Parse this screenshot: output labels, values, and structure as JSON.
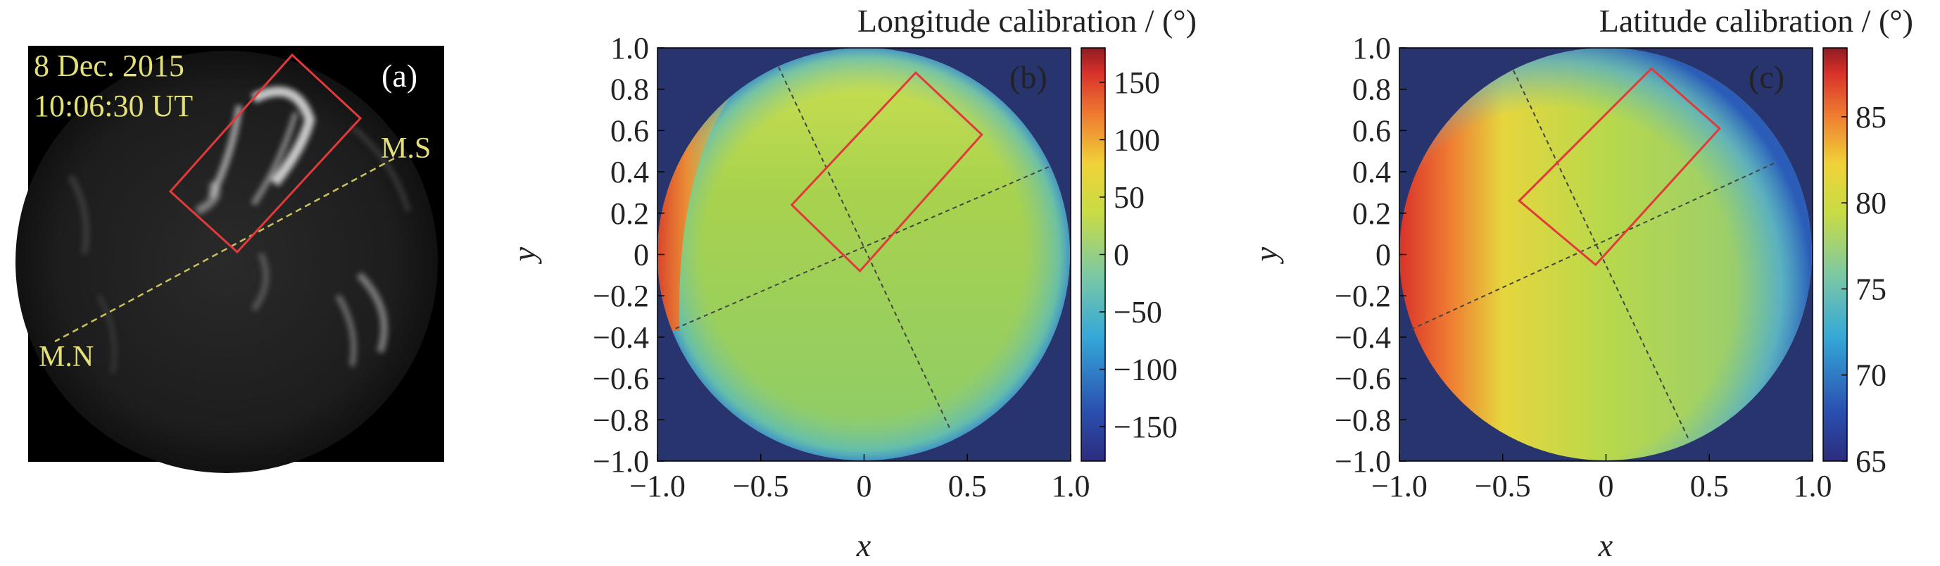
{
  "chart_data": [
    {
      "type": "image",
      "panel_label": "(a)",
      "date_text": "8 Dec. 2015",
      "time_text": "10:06:30 UT",
      "meridian_labels": {
        "south": "M.S",
        "north": "M.N"
      },
      "colors": {
        "annotation_text": "#e3e07a",
        "box": "#e23a3a",
        "meridian": "#c9c35a"
      }
    },
    {
      "type": "heatmap",
      "panel_label": "(b)",
      "title": "Longitude calibration / (°)",
      "xlabel": "x",
      "ylabel": "y",
      "xlim": [
        -1.0,
        1.0
      ],
      "ylim": [
        -1.0,
        1.0
      ],
      "x_ticks": [
        "−1.0",
        "−0.5",
        "0",
        "0.5",
        "1.0"
      ],
      "y_ticks": [
        "1.0",
        "0.8",
        "0.6",
        "0.4",
        "0.2",
        "0",
        "−0.2",
        "−0.4",
        "−0.6",
        "−0.8",
        "−1.0"
      ],
      "colorbar": {
        "range": [
          -180,
          180
        ],
        "ticks": [
          150,
          100,
          50,
          0,
          -50,
          -100,
          -150
        ],
        "tick_labels": [
          "150",
          "100",
          "50",
          "0",
          "−50",
          "−100",
          "−150"
        ]
      },
      "box_corners": [
        [
          0.25,
          0.88
        ],
        [
          0.57,
          0.58
        ],
        [
          -0.35,
          0.24
        ],
        [
          -0.02,
          -0.08
        ]
      ],
      "colors": {
        "background": "#28346e",
        "box": "#e23a3a"
      }
    },
    {
      "type": "heatmap",
      "panel_label": "(c)",
      "title": "Latitude calibration / (°)",
      "xlabel": "x",
      "ylabel": "y",
      "xlim": [
        -1.0,
        1.0
      ],
      "ylim": [
        -1.0,
        1.0
      ],
      "x_ticks": [
        "−1.0",
        "−0.5",
        "0",
        "0.5",
        "1.0"
      ],
      "y_ticks": [
        "1.0",
        "0.8",
        "0.6",
        "0.4",
        "0.2",
        "0",
        "−0.2",
        "−0.4",
        "−0.6",
        "−0.8",
        "−1.0"
      ],
      "colorbar": {
        "range": [
          65,
          89
        ],
        "ticks": [
          85,
          80,
          75,
          70,
          65
        ],
        "tick_labels": [
          "85",
          "80",
          "75",
          "70",
          "65"
        ]
      },
      "box_corners": [
        [
          0.22,
          0.9
        ],
        [
          0.55,
          0.61
        ],
        [
          -0.42,
          0.26
        ],
        [
          -0.05,
          -0.05
        ]
      ],
      "colors": {
        "background": "#28346e",
        "box": "#e23a3a"
      }
    }
  ]
}
